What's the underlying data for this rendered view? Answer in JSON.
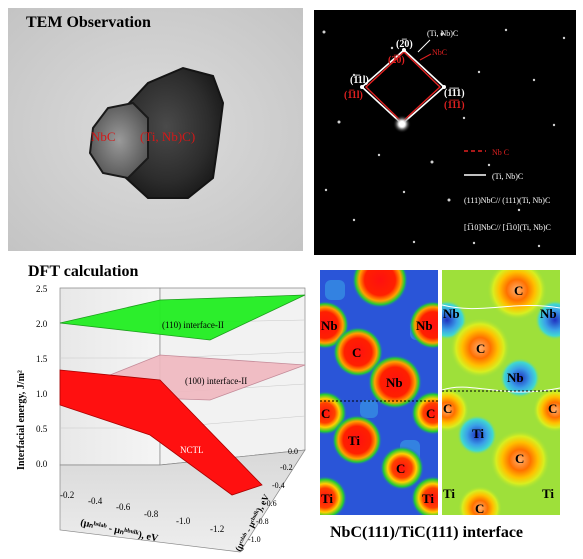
{
  "tem": {
    "title": "TEM Observation",
    "label_nbc": "NbC",
    "label_tinbc": "(Ti, Nb)C)"
  },
  "diffraction": {
    "top_label": "(Ti, Nb)C",
    "spot_220_white": "(2̅0)",
    "spot_220_red": "(2̅0)",
    "nbc_arrow_label": "NbC",
    "spot_left_white": "(1̅1l)",
    "spot_left_red": "(1̅1l)",
    "spot_right_white": "(1̅1̅1)",
    "spot_right_red": "(1̅1̅1)",
    "legend_nbc": "Nb C",
    "legend_tinbc": "(Ti, Nb)C",
    "orientation_1": "(111)NbC// (111)(Ti, Nb)C",
    "orientation_2": "[1̅10]NbC// [1̅10](Ti, Nb)C",
    "colors": {
      "nbc": "#e02020",
      "tinbc": "#ffffff",
      "background": "#000000"
    }
  },
  "dft": {
    "title": "DFT calculation",
    "ylabel": "Interfacial energy, J/m²",
    "xlabel": "(μₙᵇˢˡᵃᵇ - μₙᵇᵇᵘˡᵏ), eV",
    "zlabel": "(μᶜˢˡᵃᵇ - μᶜᵇᵘˡᵏ), eV",
    "plane_110": "(110) interface-II",
    "plane_100": "(100) interface-II",
    "plane_nctl": "NCTL",
    "yticks": [
      "0.0",
      "0.5",
      "1.0",
      "1.5",
      "2.0",
      "2.5"
    ],
    "xticks": [
      "-0.2",
      "-0.4",
      "-0.6",
      "-0.8",
      "-1.0",
      "-1.2"
    ],
    "zticks": [
      "-1.0",
      "-0.8",
      "-0.6",
      "-0.4",
      "-0.2",
      "0.0"
    ],
    "colors": {
      "plane_110": "#22ee22",
      "plane_100": "#f0b8c0",
      "plane_nctl": "#ff1010"
    }
  },
  "interface": {
    "caption": "NbC(111)/TiC(111) interface",
    "left_atoms": [
      "Nb",
      "Nb",
      "C",
      "Nb",
      "C",
      "C",
      "Ti",
      "C",
      "Ti",
      "Ti"
    ],
    "right_atoms": [
      "C",
      "Nb",
      "Nb",
      "C",
      "Nb",
      "C",
      "C",
      "Ti",
      "C",
      "Ti",
      "Ti",
      "C"
    ]
  }
}
